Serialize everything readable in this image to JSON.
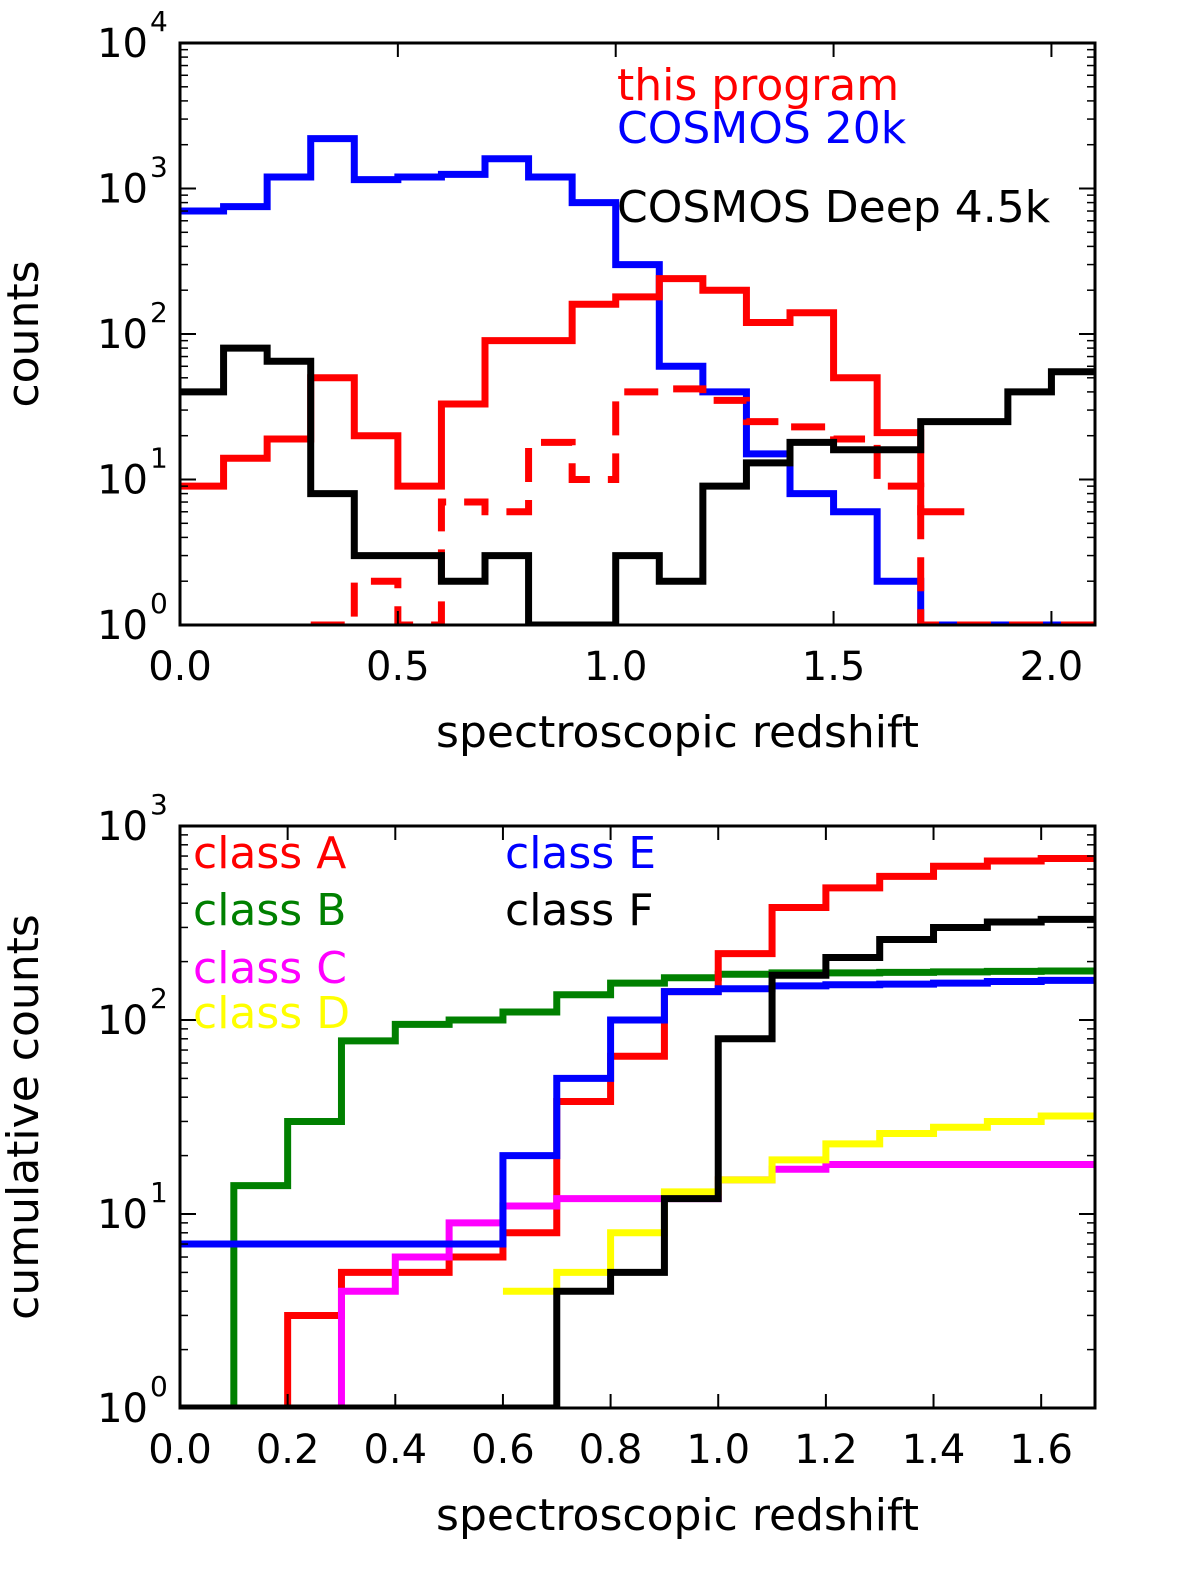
{
  "chart_data": [
    {
      "type": "line",
      "step": "post",
      "yscale": "log",
      "xlabel": "spectroscopic redshift",
      "ylabel": "counts",
      "xlim": [
        0.0,
        2.1
      ],
      "ylim_exponents": [
        0,
        4
      ],
      "xticks": [
        "0.0",
        "0.5",
        "1.0",
        "1.5",
        "2.0"
      ],
      "xtick_values": [
        0.0,
        0.5,
        1.0,
        1.5,
        2.0
      ],
      "ytick_exponents": [
        "0",
        "1",
        "2",
        "3",
        "4"
      ],
      "ytick_base": "10",
      "legend_position": "top-right",
      "legend": [
        {
          "label": "this program",
          "color": "#ff0000"
        },
        {
          "label": "COSMOS 20k",
          "color": "#0000ff"
        },
        {
          "label": "COSMOS Deep 4.5k",
          "color": "#000000"
        }
      ],
      "series": [
        {
          "color": "#0000ff",
          "dash": false,
          "edges": [
            0.0,
            0.1,
            0.2,
            0.3,
            0.4,
            0.5,
            0.6,
            0.7,
            0.8,
            0.9,
            1.0,
            1.1,
            1.2,
            1.3,
            1.4,
            1.5,
            1.6,
            1.7,
            1.8,
            1.9,
            2.0,
            2.1
          ],
          "values": [
            700,
            750,
            1200,
            2200,
            1150,
            1200,
            1250,
            1600,
            1200,
            800,
            300,
            60,
            40,
            15,
            8,
            6,
            2,
            1,
            1,
            1,
            1
          ]
        },
        {
          "color": "#ff0000",
          "dash": false,
          "edges": [
            0.0,
            0.1,
            0.2,
            0.3,
            0.4,
            0.5,
            0.6,
            0.7,
            0.8,
            0.9,
            1.0,
            1.1,
            1.2,
            1.3,
            1.4,
            1.5,
            1.6,
            1.7,
            1.8
          ],
          "values": [
            9,
            14,
            19,
            50,
            20,
            9,
            33,
            90,
            90,
            160,
            180,
            240,
            200,
            120,
            140,
            50,
            21,
            6
          ]
        },
        {
          "color": "#ff0000",
          "dash": true,
          "edges": [
            0.3,
            0.4,
            0.5,
            0.6,
            0.7,
            0.8,
            0.9,
            1.0,
            1.1,
            1.2,
            1.3,
            1.4,
            1.5,
            1.6,
            1.7,
            1.8,
            1.9,
            2.0,
            2.1
          ],
          "values": [
            1,
            2,
            1,
            7,
            6,
            18,
            10,
            40,
            42,
            35,
            25,
            23,
            19,
            9,
            1,
            1,
            1,
            1
          ]
        },
        {
          "color": "#000000",
          "dash": false,
          "edges": [
            0.0,
            0.1,
            0.2,
            0.3,
            0.4,
            0.5,
            0.6,
            0.7,
            0.8,
            0.9,
            1.0,
            1.1,
            1.2,
            1.3,
            1.4,
            1.5,
            1.6,
            1.7,
            1.8,
            1.9,
            2.0,
            2.1
          ],
          "values": [
            40,
            80,
            65,
            8,
            3,
            3,
            2,
            3,
            1,
            1,
            3,
            2,
            9,
            13,
            18,
            16,
            16,
            25,
            25,
            40,
            55
          ]
        }
      ]
    },
    {
      "type": "line",
      "step": "post",
      "yscale": "log",
      "xlabel": "spectroscopic redshift",
      "ylabel": "cumulative counts",
      "xlim": [
        0.0,
        1.7
      ],
      "ylim_exponents": [
        0,
        3
      ],
      "xticks": [
        "0.0",
        "0.2",
        "0.4",
        "0.6",
        "0.8",
        "1.0",
        "1.2",
        "1.4",
        "1.6"
      ],
      "xtick_values": [
        0.0,
        0.2,
        0.4,
        0.6,
        0.8,
        1.0,
        1.2,
        1.4,
        1.6
      ],
      "ytick_exponents": [
        "0",
        "1",
        "2",
        "3"
      ],
      "ytick_base": "10",
      "legend_position": "top-left",
      "legend": [
        {
          "label": "class A",
          "color": "#ff0000"
        },
        {
          "label": "class B",
          "color": "#008000"
        },
        {
          "label": "class C",
          "color": "#ff00ff"
        },
        {
          "label": "class D",
          "color": "#ffff00"
        },
        {
          "label": "class E",
          "color": "#0000ff"
        },
        {
          "label": "class F",
          "color": "#000000"
        }
      ],
      "series": [
        {
          "color": "#008000",
          "edges": [
            0.0,
            0.1,
            0.2,
            0.3,
            0.4,
            0.5,
            0.6,
            0.7,
            0.8,
            0.9,
            1.0,
            1.1,
            1.2,
            1.3,
            1.4,
            1.5,
            1.6,
            1.7
          ],
          "values": [
            1,
            14,
            30,
            78,
            95,
            100,
            110,
            135,
            155,
            165,
            172,
            175,
            175,
            176,
            177,
            178,
            179
          ]
        },
        {
          "color": "#ff0000",
          "edges": [
            0.0,
            0.2,
            0.3,
            0.4,
            0.5,
            0.6,
            0.7,
            0.8,
            0.9,
            1.0,
            1.1,
            1.2,
            1.3,
            1.4,
            1.5,
            1.6,
            1.7
          ],
          "values": [
            1,
            3,
            5,
            5,
            6,
            8,
            38,
            65,
            140,
            220,
            380,
            480,
            550,
            620,
            660,
            680
          ]
        },
        {
          "color": "#ff00ff",
          "edges": [
            0.0,
            0.3,
            0.4,
            0.5,
            0.6,
            0.7,
            0.8,
            0.9,
            1.0,
            1.1,
            1.2,
            1.3,
            1.4,
            1.5,
            1.6,
            1.7
          ],
          "values": [
            1,
            4,
            6,
            9,
            11,
            12,
            12,
            12,
            15,
            17,
            18,
            18,
            18,
            18,
            18
          ]
        },
        {
          "color": "#ffff00",
          "edges": [
            0.6,
            0.7,
            0.8,
            0.9,
            1.0,
            1.1,
            1.2,
            1.3,
            1.4,
            1.5,
            1.6,
            1.7
          ],
          "values": [
            4,
            5,
            8,
            13,
            15,
            19,
            23,
            26,
            28,
            30,
            32
          ]
        },
        {
          "color": "#0000ff",
          "edges": [
            0.0,
            0.6,
            0.7,
            0.8,
            0.9,
            1.0,
            1.1,
            1.2,
            1.3,
            1.4,
            1.5,
            1.6,
            1.7
          ],
          "values": [
            7,
            20,
            50,
            100,
            140,
            145,
            150,
            152,
            153,
            155,
            158,
            160
          ]
        },
        {
          "color": "#000000",
          "edges": [
            0.0,
            0.7,
            0.8,
            0.9,
            1.0,
            1.1,
            1.2,
            1.3,
            1.4,
            1.5,
            1.6,
            1.7
          ],
          "values": [
            1,
            4,
            5,
            12,
            80,
            170,
            210,
            260,
            300,
            320,
            330
          ]
        }
      ]
    }
  ]
}
